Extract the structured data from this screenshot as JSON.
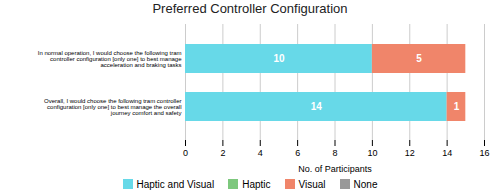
{
  "chart_data": {
    "type": "bar",
    "orientation": "horizontal",
    "stacked": true,
    "title": "Preferred Controller Configuration",
    "categories": [
      "In normal operation, I would choose the following tram\ncontroller configuration [only one] to best manage\nacceleration and braking tasks",
      "Overall, I would choose the following tram controller\nconfiguration [only one] to best manage the overall\njourney comfort and safety"
    ],
    "series": [
      {
        "name": "Haptic and Visual",
        "color": "#67D9E8",
        "values": [
          10,
          14
        ]
      },
      {
        "name": "Haptic",
        "color": "#7DC87D",
        "values": [
          0,
          0
        ]
      },
      {
        "name": "Visual",
        "color": "#F0856A",
        "values": [
          5,
          1
        ]
      },
      {
        "name": "None",
        "color": "#999999",
        "values": [
          0,
          0
        ]
      }
    ],
    "xlabel": "No. of Participants",
    "xlim": [
      0,
      16
    ],
    "xticks": [
      0,
      2,
      4,
      6,
      8,
      10,
      12,
      14,
      16
    ],
    "grid": true,
    "data_labels": true,
    "legend": "bottom"
  }
}
